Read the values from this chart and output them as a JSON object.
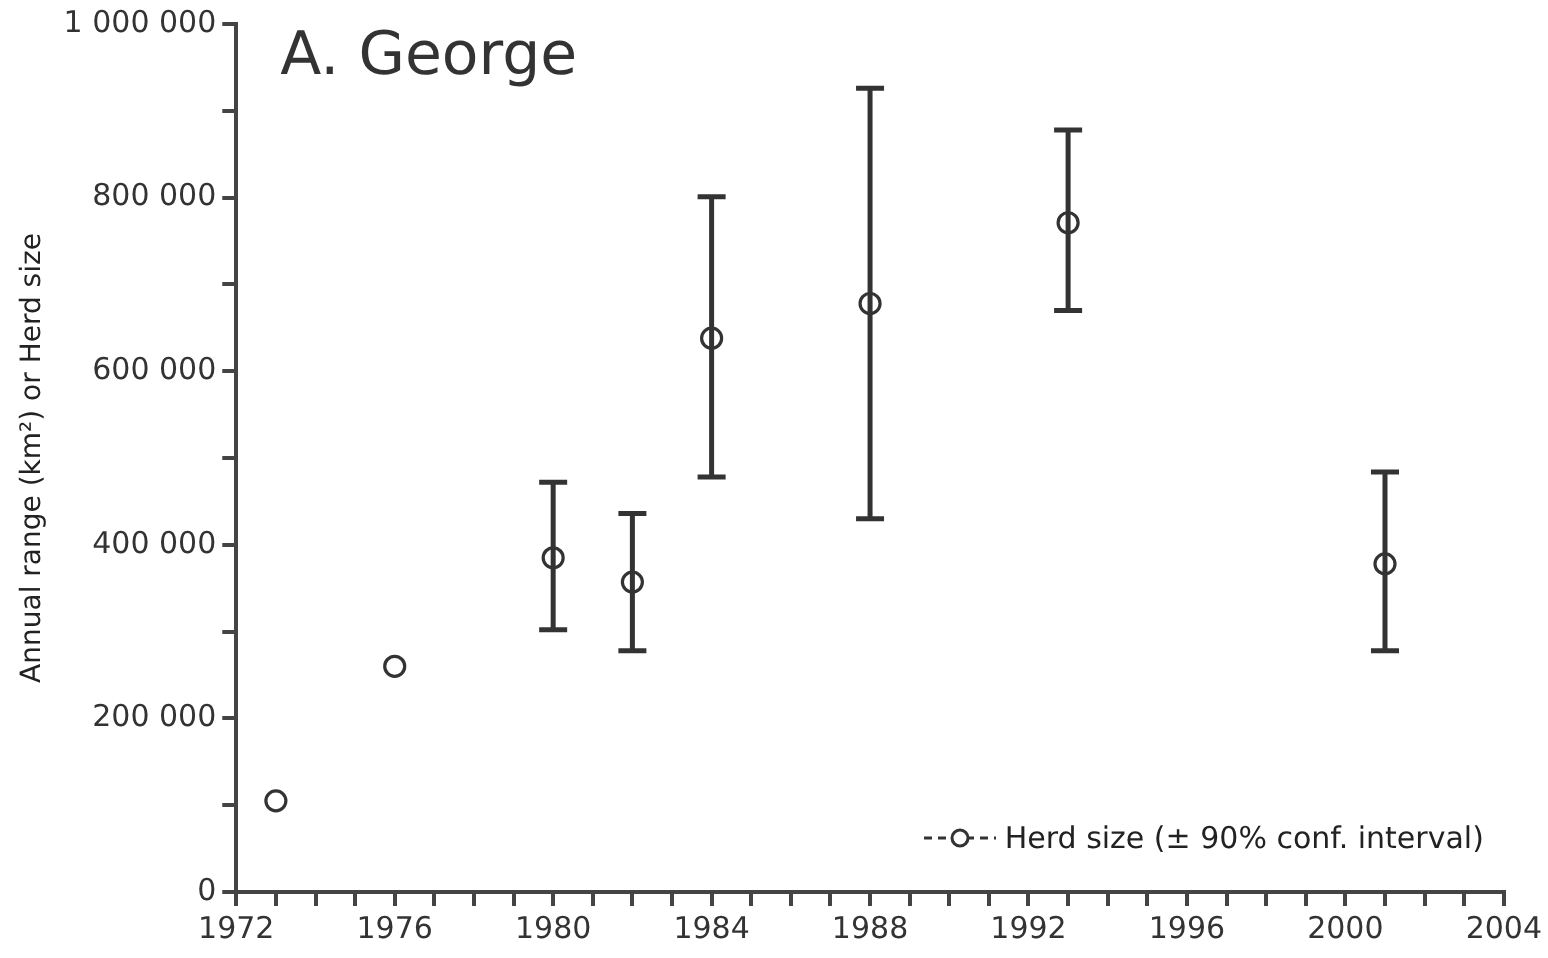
{
  "chart_data": {
    "type": "scatter",
    "title": "A. George",
    "ylabel": "Annual range (km²) or Herd size",
    "x": [
      1973,
      1976,
      1980,
      1982,
      1984,
      1988,
      1993,
      2001
    ],
    "series": [
      {
        "name": "Herd size (± 90% conf. interval)",
        "color": "#333333",
        "values": [
          105000,
          260000,
          385000,
          357000,
          638000,
          678000,
          771000,
          378000
        ],
        "errors": [
          null,
          null,
          [
            302000,
            472000
          ],
          [
            278000,
            436000
          ],
          [
            478000,
            801000
          ],
          [
            430000,
            926000
          ],
          [
            670000,
            878000
          ],
          [
            278000,
            484000
          ]
        ]
      }
    ],
    "xlim": [
      1972,
      2004
    ],
    "xticks": [
      1972,
      {
        "value": 1973,
        "label": null
      },
      {
        "value": 1974,
        "label": null
      },
      {
        "value": 1975,
        "label": null
      },
      1976,
      {
        "value": 1977,
        "label": null
      },
      {
        "value": 1978,
        "label": null
      },
      {
        "value": 1979,
        "label": null
      },
      1980,
      {
        "value": 1981,
        "label": null
      },
      {
        "value": 1982,
        "label": null
      },
      {
        "value": 1983,
        "label": null
      },
      1984,
      {
        "value": 1985,
        "label": null
      },
      {
        "value": 1986,
        "label": null
      },
      {
        "value": 1987,
        "label": null
      },
      1988,
      {
        "value": 1989,
        "label": null
      },
      {
        "value": 1990,
        "label": null
      },
      {
        "value": 1991,
        "label": null
      },
      1992,
      {
        "value": 1993,
        "label": null
      },
      {
        "value": 1994,
        "label": null
      },
      {
        "value": 1995,
        "label": null
      },
      1996,
      {
        "value": 1997,
        "label": null
      },
      {
        "value": 1998,
        "label": null
      },
      {
        "value": 1999,
        "label": null
      },
      2000,
      {
        "value": 2001,
        "label": null
      },
      {
        "value": 2002,
        "label": null
      },
      {
        "value": 2003,
        "label": null
      },
      2004
    ],
    "ylim": [
      0,
      1000000
    ],
    "yticks": [
      0,
      {
        "value": 100000,
        "label": null
      },
      {
        "value": 200000,
        "label": "200 000"
      },
      {
        "value": 300000,
        "label": null
      },
      {
        "value": 400000,
        "label": "400 000"
      },
      {
        "value": 500000,
        "label": null
      },
      {
        "value": 600000,
        "label": "600 000"
      },
      {
        "value": 700000,
        "label": null
      },
      {
        "value": 800000,
        "label": "800 000"
      },
      {
        "value": 900000,
        "label": null
      },
      {
        "value": 1000000,
        "label": "1 000 000"
      }
    ],
    "marker": "circle",
    "grid": false,
    "legend": "bottom right"
  }
}
